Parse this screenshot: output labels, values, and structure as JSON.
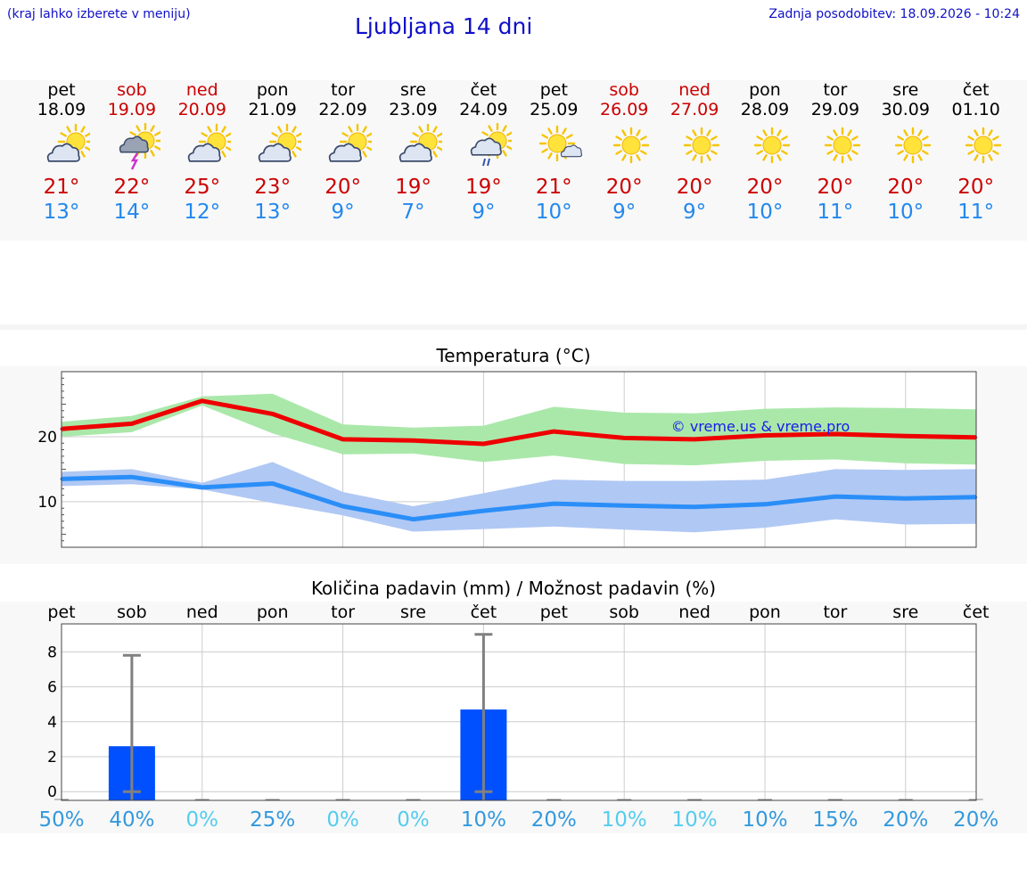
{
  "header": {
    "hint": "(kraj lahko izberete v meniju)",
    "title": "Ljubljana 14 dni",
    "updated": "Zadnja posodobitev: 18.09.2026 - 10:24"
  },
  "days": [
    {
      "name": "pet",
      "date": "18.09",
      "weekend": false,
      "icon": "partly-cloudy-icon",
      "tmax": "21°",
      "tmin": "13°"
    },
    {
      "name": "sob",
      "date": "19.09",
      "weekend": true,
      "icon": "thunderstorm-icon",
      "tmax": "22°",
      "tmin": "14°"
    },
    {
      "name": "ned",
      "date": "20.09",
      "weekend": true,
      "icon": "partly-cloudy-icon",
      "tmax": "25°",
      "tmin": "12°"
    },
    {
      "name": "pon",
      "date": "21.09",
      "weekend": false,
      "icon": "partly-cloudy-icon",
      "tmax": "23°",
      "tmin": "13°"
    },
    {
      "name": "tor",
      "date": "22.09",
      "weekend": false,
      "icon": "partly-cloudy-icon",
      "tmax": "20°",
      "tmin": "9°"
    },
    {
      "name": "sre",
      "date": "23.09",
      "weekend": false,
      "icon": "partly-cloudy-icon",
      "tmax": "19°",
      "tmin": "7°"
    },
    {
      "name": "čet",
      "date": "24.09",
      "weekend": false,
      "icon": "rain-shower-icon",
      "tmax": "19°",
      "tmin": "9°"
    },
    {
      "name": "pet",
      "date": "25.09",
      "weekend": false,
      "icon": "mostly-sunny-icon",
      "tmax": "21°",
      "tmin": "10°"
    },
    {
      "name": "sob",
      "date": "26.09",
      "weekend": true,
      "icon": "sunny-icon",
      "tmax": "20°",
      "tmin": "9°"
    },
    {
      "name": "ned",
      "date": "27.09",
      "weekend": true,
      "icon": "sunny-icon",
      "tmax": "20°",
      "tmin": "9°"
    },
    {
      "name": "pon",
      "date": "28.09",
      "weekend": false,
      "icon": "sunny-icon",
      "tmax": "20°",
      "tmin": "10°"
    },
    {
      "name": "tor",
      "date": "29.09",
      "weekend": false,
      "icon": "sunny-icon",
      "tmax": "20°",
      "tmin": "11°"
    },
    {
      "name": "sre",
      "date": "30.09",
      "weekend": false,
      "icon": "sunny-icon",
      "tmax": "20°",
      "tmin": "10°"
    },
    {
      "name": "čet",
      "date": "01.10",
      "weekend": false,
      "icon": "sunny-icon",
      "tmax": "20°",
      "tmin": "11°"
    }
  ],
  "colors": {
    "title_blue": "#1010c8",
    "max_red": "#cc0000",
    "min_blue": "#2288ee",
    "max_line": "#ee0000",
    "max_band": "#aae8aa",
    "min_line": "#2a8ef8",
    "min_band": "#b0c8f4",
    "bar": "#0050ff",
    "whisker": "#808080"
  },
  "chart_data": [
    {
      "type": "line",
      "title": "Temperatura (°C)",
      "watermark": "© vreme.us & vreme.pro",
      "x": [
        "pet",
        "sob",
        "ned",
        "pon",
        "tor",
        "sre",
        "čet",
        "pet",
        "sob",
        "ned",
        "pon",
        "tor",
        "sre",
        "čet"
      ],
      "ylim": [
        3,
        30
      ],
      "yticks": [
        10,
        20
      ],
      "grid": true,
      "series": [
        {
          "role": "max",
          "values": [
            21.2,
            22.0,
            25.5,
            23.5,
            19.6,
            19.4,
            18.9,
            20.8,
            19.8,
            19.6,
            20.2,
            20.4,
            20.1,
            19.9
          ],
          "band_low": [
            20.0,
            20.7,
            24.8,
            20.5,
            17.3,
            17.4,
            16.1,
            17.1,
            15.8,
            15.6,
            16.3,
            16.5,
            15.9,
            15.7
          ],
          "band_high": [
            22.3,
            23.2,
            26.2,
            26.6,
            21.9,
            21.4,
            21.7,
            24.6,
            23.7,
            23.6,
            24.3,
            24.5,
            24.4,
            24.2
          ]
        },
        {
          "role": "min",
          "values": [
            13.5,
            13.8,
            12.2,
            12.8,
            9.3,
            7.3,
            8.6,
            9.7,
            9.4,
            9.2,
            9.6,
            10.8,
            10.5,
            10.7
          ],
          "band_low": [
            12.4,
            12.7,
            11.9,
            9.8,
            7.9,
            5.4,
            5.8,
            6.2,
            5.7,
            5.3,
            6.0,
            7.3,
            6.5,
            6.6
          ],
          "band_high": [
            14.6,
            15.0,
            12.9,
            16.1,
            11.5,
            9.3,
            11.3,
            13.4,
            13.2,
            13.2,
            13.4,
            15.0,
            14.9,
            15.0
          ]
        }
      ]
    },
    {
      "type": "bar",
      "title": "Količina padavin (mm) / Možnost padavin (%)",
      "categories": [
        "pet",
        "sob",
        "ned",
        "pon",
        "tor",
        "sre",
        "čet",
        "pet",
        "sob",
        "ned",
        "pon",
        "tor",
        "sre",
        "čet"
      ],
      "values": [
        0,
        2.6,
        0,
        0,
        0,
        0,
        4.7,
        0,
        0,
        0,
        0,
        0,
        0,
        0
      ],
      "error_high": [
        0,
        7.8,
        0,
        0,
        0,
        0,
        9.0,
        0,
        0,
        0,
        0,
        0,
        0,
        0
      ],
      "ylim": [
        -0.5,
        9.6
      ],
      "yticks": [
        0,
        2,
        4,
        6,
        8
      ],
      "probability": [
        "50%",
        "40%",
        "0%",
        "25%",
        "0%",
        "0%",
        "10%",
        "20%",
        "10%",
        "10%",
        "10%",
        "15%",
        "20%",
        "20%"
      ],
      "probability_colors": [
        "#3399dd",
        "#3399dd",
        "#55ccee",
        "#3399dd",
        "#55ccee",
        "#55ccee",
        "#3399dd",
        "#3399dd",
        "#55ccee",
        "#55ccee",
        "#3399dd",
        "#3399dd",
        "#3399dd",
        "#3399dd"
      ]
    }
  ]
}
